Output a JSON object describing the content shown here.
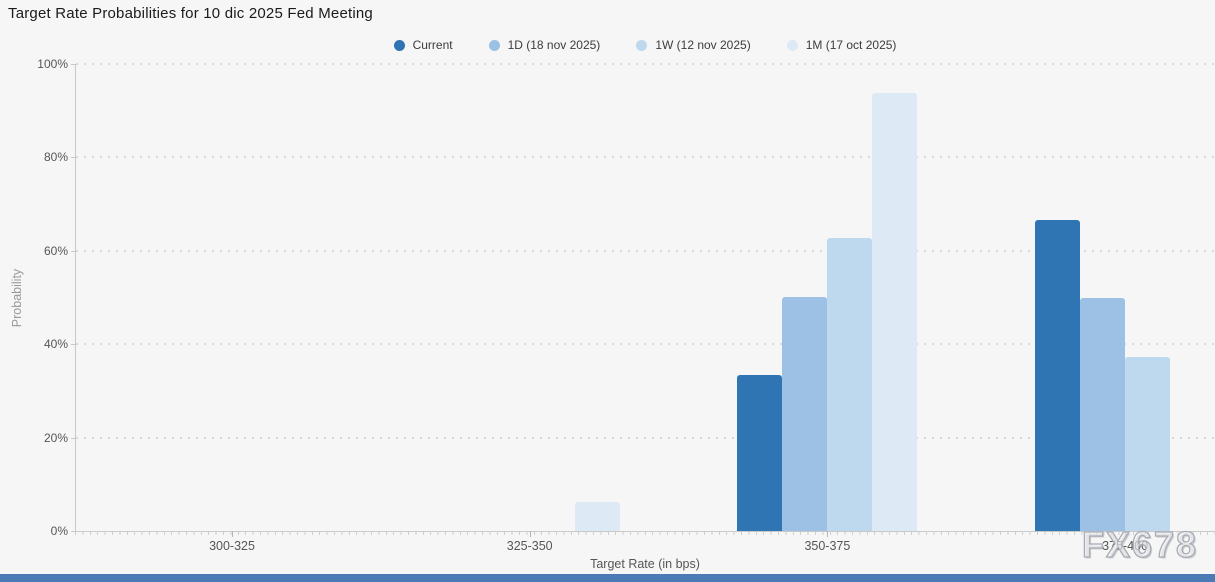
{
  "watermark": "FX678",
  "footer": {
    "color": "#4a7bb4"
  },
  "chart_data": {
    "type": "bar",
    "title": "Target Rate Probabilities for 10 dic 2025 Fed Meeting",
    "xlabel": "Target Rate (in bps)",
    "ylabel": "Probability",
    "ylim": [
      0,
      100
    ],
    "y_ticks": [
      "0%",
      "20%",
      "40%",
      "60%",
      "80%",
      "100%"
    ],
    "grid": "dotted-horizontal",
    "legend_position": "top-center",
    "categories": [
      "300-325",
      "325-350",
      "350-375",
      "375-400"
    ],
    "series": [
      {
        "name": "Current",
        "color": "#2f74b3",
        "values": [
          0,
          0,
          33.4,
          66.6
        ]
      },
      {
        "name": "1D (18 nov 2025)",
        "color": "#9cc1e4",
        "values": [
          0,
          0,
          50.1,
          49.9
        ]
      },
      {
        "name": "1W (12 nov 2025)",
        "color": "#bed8ed",
        "values": [
          0,
          0,
          62.7,
          37.3
        ]
      },
      {
        "name": "1M (17 oct 2025)",
        "color": "#dde9f5",
        "values": [
          0,
          6.3,
          93.7,
          0
        ]
      }
    ]
  }
}
